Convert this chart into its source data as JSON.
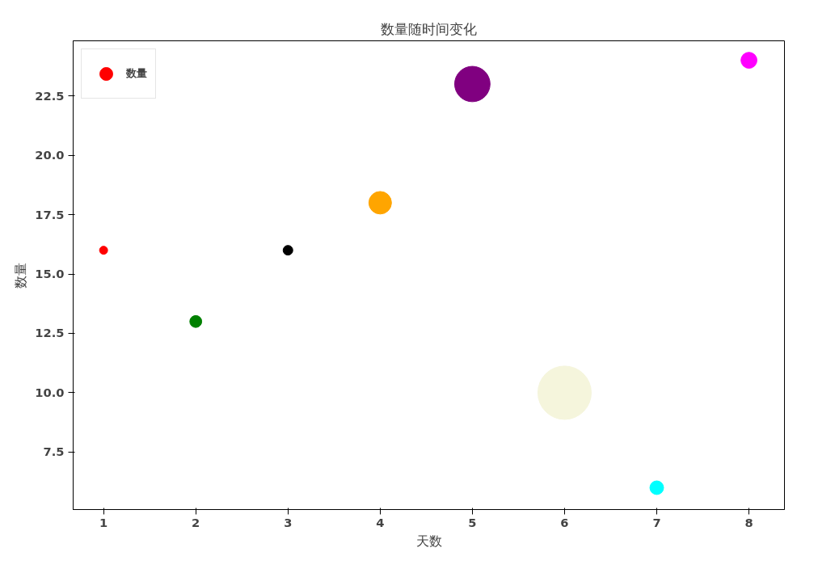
{
  "chart_data": {
    "type": "bubble",
    "title": "数量随时间变化",
    "xlabel": "天数",
    "ylabel": "数量",
    "x": [
      1,
      2,
      3,
      4,
      5,
      6,
      7,
      8
    ],
    "series": [
      {
        "name": "数量",
        "values": [
          16,
          13,
          16,
          18,
          23,
          10,
          6,
          24
        ],
        "sizes": [
          0.023,
          0.05,
          0.033,
          0.18,
          0.44,
          1,
          0.066,
          0.09
        ],
        "colors": [
          "#ff0000",
          "#008000",
          "#000000",
          "#ffa500",
          "#800080",
          "#f5f5dc",
          "#00ffff",
          "#ff00ff"
        ]
      }
    ],
    "xlim": [
      0.67,
      8.385
    ],
    "ylim": [
      5.08,
      24.82
    ],
    "xticks": [
      1,
      2,
      3,
      4,
      5,
      6,
      7,
      8
    ],
    "yticks": [
      {
        "value": 7.5,
        "label": "7.5"
      },
      {
        "value": 10,
        "label": "10.0"
      },
      {
        "value": 12.5,
        "label": "12.5"
      },
      {
        "value": 15,
        "label": "15.0"
      },
      {
        "value": 17.5,
        "label": "17.5"
      },
      {
        "value": 20,
        "label": "20.0"
      },
      {
        "value": 22.5,
        "label": "22.5"
      }
    ],
    "grid": false,
    "legend": "top left",
    "marker": "circle"
  }
}
